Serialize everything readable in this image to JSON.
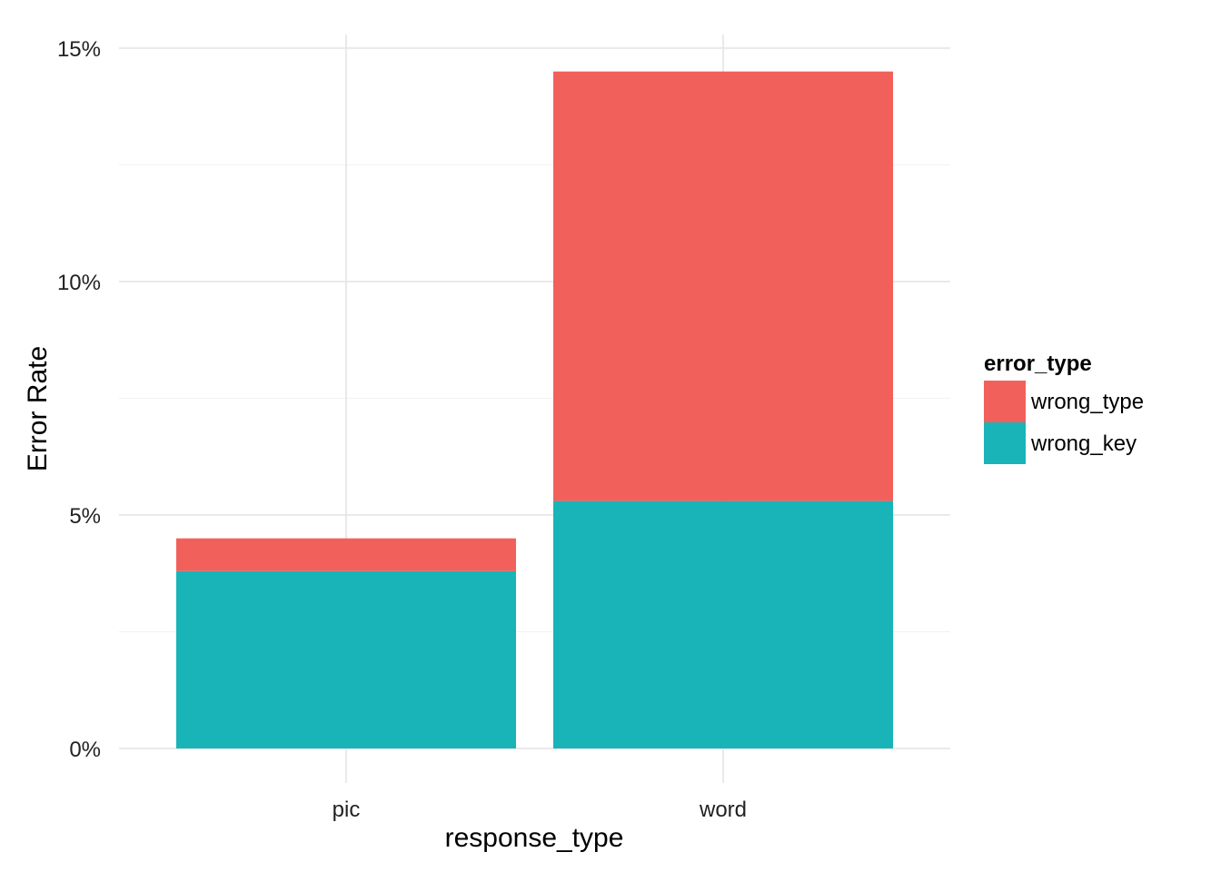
{
  "chart_data": {
    "type": "bar",
    "stacked": true,
    "categories": [
      "pic",
      "word"
    ],
    "series": [
      {
        "name": "wrong_key",
        "values": [
          3.8,
          5.3
        ],
        "color": "#19B4B8"
      },
      {
        "name": "wrong_type",
        "values": [
          0.7,
          9.2
        ],
        "color": "#F2605C"
      }
    ],
    "xlabel": "response_type",
    "ylabel": "Error Rate",
    "ylim": [
      0,
      15
    ],
    "yticks": [
      0,
      5,
      10,
      15
    ],
    "ytick_labels": [
      "0%",
      "5%",
      "10%",
      "15%"
    ],
    "grid": true,
    "legend": {
      "title": "error_type",
      "position": "right",
      "entries": [
        {
          "name": "wrong_type",
          "color": "#F2605C"
        },
        {
          "name": "wrong_key",
          "color": "#19B4B8"
        }
      ]
    }
  }
}
